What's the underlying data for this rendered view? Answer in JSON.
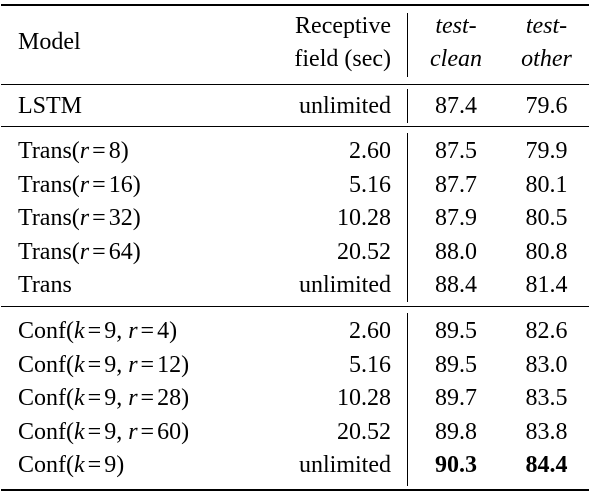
{
  "header": {
    "model": "Model",
    "field_line1": "Receptive",
    "field_line2": "field (sec)",
    "clean_line1": "test-",
    "clean_line2": "clean",
    "other_line1": "test-",
    "other_line2": "other"
  },
  "groups": [
    [
      {
        "model": "LSTM",
        "field": "unlimited",
        "clean": "87.4",
        "other": "79.6"
      }
    ],
    [
      {
        "model": "Trans(r = 8)",
        "field": "2.60",
        "clean": "87.5",
        "other": "79.9"
      },
      {
        "model": "Trans(r = 16)",
        "field": "5.16",
        "clean": "87.7",
        "other": "80.1"
      },
      {
        "model": "Trans(r = 32)",
        "field": "10.28",
        "clean": "87.9",
        "other": "80.5"
      },
      {
        "model": "Trans(r = 64)",
        "field": "20.52",
        "clean": "88.0",
        "other": "80.8"
      },
      {
        "model": "Trans",
        "field": "unlimited",
        "clean": "88.4",
        "other": "81.4"
      }
    ],
    [
      {
        "model": "Conf(k = 9, r = 4)",
        "field": "2.60",
        "clean": "89.5",
        "other": "82.6"
      },
      {
        "model": "Conf(k = 9, r = 12)",
        "field": "5.16",
        "clean": "89.5",
        "other": "83.0"
      },
      {
        "model": "Conf(k = 9, r = 28)",
        "field": "10.28",
        "clean": "89.7",
        "other": "83.5"
      },
      {
        "model": "Conf(k = 9, r = 60)",
        "field": "20.52",
        "clean": "89.8",
        "other": "83.8"
      },
      {
        "model": "Conf(k = 9)",
        "field": "unlimited",
        "clean": "90.3",
        "other": "84.4",
        "bold": true
      }
    ]
  ]
}
